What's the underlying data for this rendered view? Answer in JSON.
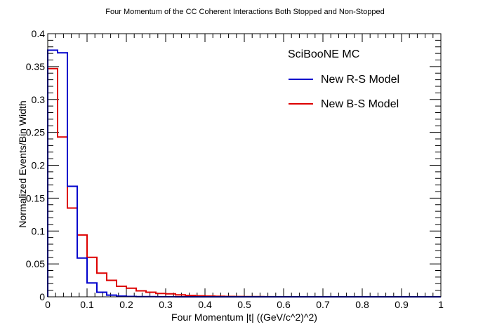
{
  "chart_data": {
    "type": "histogram",
    "title": "Four Momentum of the CC Coherent Interactions Both Stopped and Non-Stopped",
    "xlabel": "Four Momentum |t| ((GeV/c^2)^2)",
    "ylabel": "Normalized Events/Bin Width",
    "xlim": [
      0,
      1
    ],
    "ylim": [
      0,
      0.4
    ],
    "x_ticks": [
      0,
      0.1,
      0.2,
      0.3,
      0.4,
      0.5,
      0.6,
      0.7,
      0.8,
      0.9,
      1
    ],
    "x_tick_labels": [
      "0",
      "0.1",
      "0.2",
      "0.3",
      "0.4",
      "0.5",
      "0.6",
      "0.7",
      "0.8",
      "0.9",
      "1"
    ],
    "y_ticks": [
      0,
      0.05,
      0.1,
      0.15,
      0.2,
      0.25,
      0.3,
      0.35,
      0.4
    ],
    "y_tick_labels": [
      "0",
      "0.05",
      "0.1",
      "0.15",
      "0.2",
      "0.25",
      "0.3",
      "0.35",
      "0.4"
    ],
    "grid": false,
    "legend_position": "top-right",
    "legend_header": "SciBooNE MC",
    "bin_edges": [
      0,
      0.025,
      0.05,
      0.075,
      0.1,
      0.125,
      0.15,
      0.175,
      0.2,
      0.225,
      0.25,
      0.275,
      0.3,
      0.325,
      0.35,
      0.375,
      0.4,
      0.425,
      0.45,
      0.475,
      0.5,
      0.525,
      0.55,
      0.575,
      0.6,
      0.625,
      0.65,
      0.675,
      0.7,
      0.725,
      0.75,
      0.775,
      0.8,
      0.825,
      0.85,
      0.875,
      0.9,
      0.925,
      0.95,
      0.975,
      1.0
    ],
    "series": [
      {
        "name": "New R-S Model",
        "color": "#0000cc",
        "values": [
          0.375,
          0.371,
          0.168,
          0.059,
          0.021,
          0.007,
          0.0025,
          0.001,
          0.0005,
          0.0003,
          0.0002,
          0.0001,
          0.0001,
          0,
          0,
          0,
          0,
          0,
          0,
          0,
          0,
          0,
          0,
          0,
          0,
          0,
          0,
          0,
          0,
          0,
          0,
          0,
          0,
          0,
          0,
          0,
          0,
          0,
          0,
          0
        ]
      },
      {
        "name": "New B-S Model",
        "color": "#dd0000",
        "values": [
          0.347,
          0.243,
          0.135,
          0.094,
          0.06,
          0.036,
          0.025,
          0.016,
          0.013,
          0.009,
          0.007,
          0.005,
          0.0045,
          0.003,
          0.002,
          0.0015,
          0.001,
          0.0008,
          0.0006,
          0.0004,
          0.0003,
          0.0002,
          0.0001,
          0,
          0,
          0,
          0,
          0,
          0,
          0,
          0,
          0,
          0,
          0,
          0,
          0,
          0,
          0,
          0,
          0
        ]
      }
    ]
  }
}
